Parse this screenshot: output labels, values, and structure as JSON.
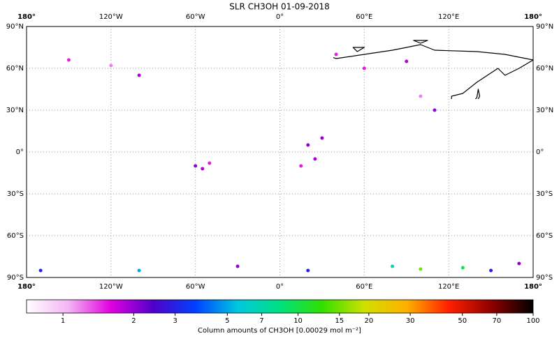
{
  "map": {
    "title": "SLR CH3OH 01-09-2018",
    "xlim": [
      -180,
      180
    ],
    "ylim": [
      -90,
      90
    ],
    "lon_ticks": [
      {
        "value": -180,
        "label": "180°"
      },
      {
        "value": -120,
        "label": "120°W"
      },
      {
        "value": -60,
        "label": "60°W"
      },
      {
        "value": 0,
        "label": "0°"
      },
      {
        "value": 60,
        "label": "60°E"
      },
      {
        "value": 120,
        "label": "120°E"
      },
      {
        "value": 180,
        "label": "180°"
      }
    ],
    "lat_ticks": [
      {
        "value": 90,
        "label": "90°N"
      },
      {
        "value": 60,
        "label": "60°N"
      },
      {
        "value": 30,
        "label": "30°N"
      },
      {
        "value": 0,
        "label": "0°"
      },
      {
        "value": -30,
        "label": "30°S"
      },
      {
        "value": -60,
        "label": "60°S"
      },
      {
        "value": -90,
        "label": "90°S"
      }
    ],
    "grid": true,
    "points": [
      {
        "lon": -150,
        "lat": 66,
        "value": 1.5
      },
      {
        "lon": -120,
        "lat": 62,
        "value": 1.2
      },
      {
        "lon": -100,
        "lat": 55,
        "value": 1.8
      },
      {
        "lon": -60,
        "lat": -10,
        "value": 2
      },
      {
        "lon": -55,
        "lat": -12,
        "value": 1.8
      },
      {
        "lon": -50,
        "lat": -8,
        "value": 1.5
      },
      {
        "lon": 20,
        "lat": 5,
        "value": 2
      },
      {
        "lon": 25,
        "lat": -5,
        "value": 1.8
      },
      {
        "lon": 30,
        "lat": 10,
        "value": 2
      },
      {
        "lon": 15,
        "lat": -10,
        "value": 1.5
      },
      {
        "lon": 60,
        "lat": 60,
        "value": 1.5
      },
      {
        "lon": 90,
        "lat": 65,
        "value": 1.8
      },
      {
        "lon": 110,
        "lat": 30,
        "value": 2
      },
      {
        "lon": 100,
        "lat": 40,
        "value": 1.2
      },
      {
        "lon": 40,
        "lat": 70,
        "value": 1.5
      },
      {
        "lon": -170,
        "lat": -85,
        "value": 3
      },
      {
        "lon": -100,
        "lat": -85,
        "value": 5
      },
      {
        "lon": -30,
        "lat": -82,
        "value": 2
      },
      {
        "lon": 20,
        "lat": -85,
        "value": 3
      },
      {
        "lon": 80,
        "lat": -82,
        "value": 7
      },
      {
        "lon": 100,
        "lat": -84,
        "value": 15
      },
      {
        "lon": 130,
        "lat": -83,
        "value": 10
      },
      {
        "lon": 150,
        "lat": -85,
        "value": 3
      },
      {
        "lon": 170,
        "lat": -80,
        "value": 2
      }
    ],
    "colorbar": {
      "label": "Column amounts of CH3OH [0.00029 mol m⁻²]",
      "scale": "log",
      "lim": [
        0.7,
        100
      ],
      "ticks": [
        1,
        2,
        3,
        5,
        7,
        10,
        15,
        20,
        30,
        50,
        70,
        100
      ],
      "colors": [
        "#ffffff",
        "#f4b4f4",
        "#e000e0",
        "#5000c8",
        "#0040ff",
        "#00c8e0",
        "#00e080",
        "#30e000",
        "#d0e000",
        "#ffb000",
        "#ff2000",
        "#900000",
        "#000000"
      ]
    }
  }
}
